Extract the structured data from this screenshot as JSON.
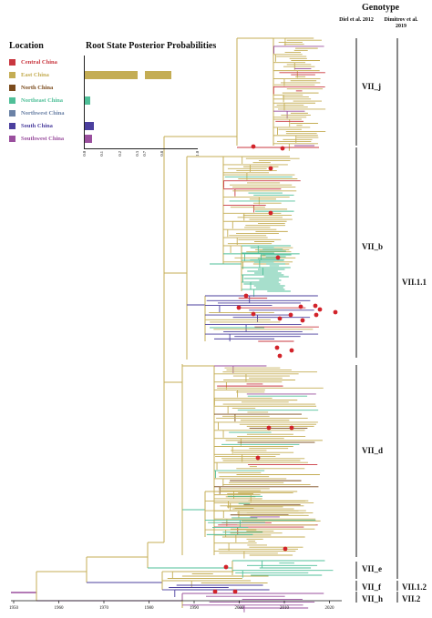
{
  "header": {
    "title": "Genotype",
    "col1": "Diel et al. 2012",
    "col2": "Dimitrov et al. 2019"
  },
  "legend": {
    "location_title": "Location",
    "prob_title": "Root State Posterior Probabilities",
    "items": [
      {
        "label": "Central China",
        "color": "#c9373f",
        "prob": 0.0
      },
      {
        "label": "East China",
        "color": "#c4ad54",
        "prob": 0.85
      },
      {
        "label": "North China",
        "color": "#7b4b1d",
        "prob": 0.0
      },
      {
        "label": "Northeast China",
        "color": "#4fbf98",
        "prob": 0.03
      },
      {
        "label": "Northwest China",
        "color": "#6b82a6",
        "prob": 0.0
      },
      {
        "label": "South China",
        "color": "#4b3f9e",
        "prob": 0.05
      },
      {
        "label": "Southwest China",
        "color": "#9a4f9e",
        "prob": 0.04
      }
    ],
    "axis_ticks": [
      "0.0",
      "0.1",
      "0.2",
      "0.3",
      "0.7",
      "0.8",
      "1.0"
    ]
  },
  "chart_data": {
    "type": "bar",
    "title": "Root State Posterior Probabilities",
    "categories": [
      "Central China",
      "East China",
      "North China",
      "Northeast China",
      "Northwest China",
      "South China",
      "Southwest China"
    ],
    "values": [
      0.0,
      0.85,
      0.0,
      0.03,
      0.0,
      0.05,
      0.04
    ],
    "axis_break": [
      0.3,
      0.7
    ],
    "xlim": [
      0,
      1.0
    ]
  },
  "clades": {
    "diel": [
      {
        "label": "VII_j"
      },
      {
        "label": "VII_b"
      },
      {
        "label": "VII_d"
      },
      {
        "label": "VII_e"
      },
      {
        "label": "VII_f"
      },
      {
        "label": "VII_h"
      }
    ],
    "dimitrov": [
      {
        "label": "VII.1.1"
      },
      {
        "label": "VII.1.2"
      },
      {
        "label": "VII.2"
      }
    ]
  },
  "time_axis": {
    "years": [
      "1950",
      "1960",
      "1970",
      "1980",
      "1990",
      "2000",
      "2010",
      "2020"
    ]
  }
}
